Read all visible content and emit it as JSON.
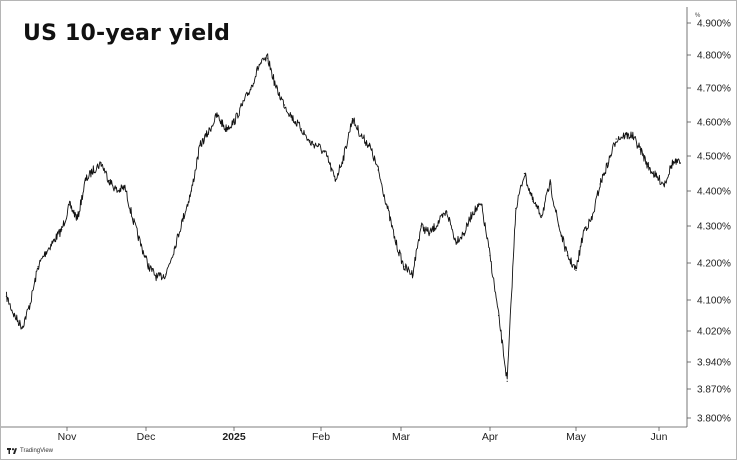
{
  "title": "US 10-year yield",
  "brand": "TradingView",
  "chart_data": {
    "type": "line",
    "title": "US 10-year yield",
    "series": [
      {
        "x": [
          "2024-10-09",
          "2024-10-12",
          "2024-10-15",
          "2024-10-18",
          "2024-10-21",
          "2024-10-24",
          "2024-10-27",
          "2024-10-30",
          "2024-11-02",
          "2024-11-05",
          "2024-11-08",
          "2024-11-11",
          "2024-11-14",
          "2024-11-17",
          "2024-11-20",
          "2024-11-23",
          "2024-11-26",
          "2024-11-29",
          "2024-12-02",
          "2024-12-05",
          "2024-12-08",
          "2024-12-11",
          "2024-12-14",
          "2024-12-17",
          "2024-12-20",
          "2024-12-23",
          "2024-12-26",
          "2024-12-29",
          "2025-01-01",
          "2025-01-04",
          "2025-01-07",
          "2025-01-10",
          "2025-01-13",
          "2025-01-16",
          "2025-01-19",
          "2025-01-22",
          "2025-01-25",
          "2025-01-28",
          "2025-01-31",
          "2025-02-03",
          "2025-02-06",
          "2025-02-09",
          "2025-02-12",
          "2025-02-15",
          "2025-02-18",
          "2025-02-21",
          "2025-02-24",
          "2025-02-27",
          "2025-03-02",
          "2025-03-05",
          "2025-03-08",
          "2025-03-11",
          "2025-03-14",
          "2025-03-17",
          "2025-03-20",
          "2025-03-23",
          "2025-03-26",
          "2025-03-29",
          "2025-04-01",
          "2025-04-04",
          "2025-04-07",
          "2025-04-10",
          "2025-04-13",
          "2025-04-16",
          "2025-04-19",
          "2025-04-22",
          "2025-04-25",
          "2025-04-28",
          "2025-05-01",
          "2025-05-04",
          "2025-05-07",
          "2025-05-10",
          "2025-05-13",
          "2025-05-16",
          "2025-05-19",
          "2025-05-22",
          "2025-05-25",
          "2025-05-28",
          "2025-05-31",
          "2025-06-03",
          "2025-06-06",
          "2025-06-09"
        ],
        "values": [
          4.11,
          4.06,
          4.03,
          4.09,
          4.19,
          4.23,
          4.26,
          4.29,
          4.36,
          4.32,
          4.43,
          4.46,
          4.48,
          4.43,
          4.4,
          4.41,
          4.32,
          4.25,
          4.19,
          4.16,
          4.17,
          4.24,
          4.32,
          4.4,
          4.53,
          4.57,
          4.62,
          4.58,
          4.6,
          4.65,
          4.7,
          4.77,
          4.79,
          4.7,
          4.65,
          4.61,
          4.58,
          4.54,
          4.53,
          4.5,
          4.43,
          4.5,
          4.61,
          4.56,
          4.53,
          4.46,
          4.36,
          4.26,
          4.19,
          4.17,
          4.3,
          4.28,
          4.31,
          4.34,
          4.26,
          4.28,
          4.34,
          4.36,
          4.22,
          4.06,
          3.89,
          4.35,
          4.45,
          4.37,
          4.33,
          4.42,
          4.3,
          4.22,
          4.18,
          4.29,
          4.32,
          4.42,
          4.48,
          4.55,
          4.56,
          4.56,
          4.52,
          4.47,
          4.44,
          4.42,
          4.48,
          4.48
        ]
      }
    ],
    "x_ticks": [
      "Nov",
      "Dec",
      "2025",
      "Feb",
      "Mar",
      "Apr",
      "May",
      "Jun"
    ],
    "y_ticks": [
      "3.800%",
      "3.870%",
      "3.940%",
      "4.020%",
      "4.100%",
      "4.200%",
      "4.300%",
      "4.400%",
      "4.500%",
      "4.600%",
      "4.700%",
      "4.800%",
      "4.900%"
    ],
    "ylim": [
      3.78,
      4.92
    ],
    "grid": false,
    "y_axis_unit_mark": "%"
  }
}
